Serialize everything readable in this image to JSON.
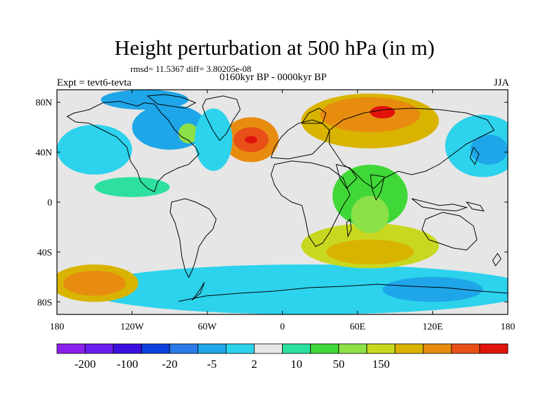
{
  "header": {
    "title": "Height perturbation at 500 hPa (in m)",
    "stats": "rmsd= 11.5367 diff= 3.80205e-08",
    "subtitle": "0160kyr BP - 0000kyr BP",
    "experiment": "Expt = tevt6-tevta",
    "season": "JJA"
  },
  "map": {
    "projection": "cylindrical-equidistant",
    "lon_range": [
      -180,
      180
    ],
    "lat_range": [
      -90,
      90
    ],
    "x_ticks": [
      {
        "value": -180,
        "label": "180"
      },
      {
        "value": -120,
        "label": "120W"
      },
      {
        "value": -60,
        "label": "60W"
      },
      {
        "value": 0,
        "label": "0"
      },
      {
        "value": 60,
        "label": "60E"
      },
      {
        "value": 120,
        "label": "120E"
      },
      {
        "value": 180,
        "label": "180"
      }
    ],
    "y_ticks": [
      {
        "value": 80,
        "label": "80N"
      },
      {
        "value": 40,
        "label": "40N"
      },
      {
        "value": 0,
        "label": "0"
      },
      {
        "value": -40,
        "label": "40S"
      },
      {
        "value": -80,
        "label": "80S"
      }
    ],
    "background_color": "#e6e6e6",
    "features": [
      {
        "name": "north-pacific-low",
        "lon": -150,
        "lat": 42,
        "rx": 30,
        "ry": 20,
        "level": 6
      },
      {
        "name": "north-america-low",
        "lon": -90,
        "lat": 60,
        "rx": 30,
        "ry": 18,
        "level": 5
      },
      {
        "name": "hudson-high",
        "lon": -75,
        "lat": 55,
        "rx": 8,
        "ry": 8,
        "level": 10
      },
      {
        "name": "arctic-low",
        "lon": -110,
        "lat": 82,
        "rx": 35,
        "ry": 8,
        "level": 5
      },
      {
        "name": "north-atlantic-high",
        "lon": -25,
        "lat": 50,
        "rx": 22,
        "ry": 18,
        "level": 13
      },
      {
        "name": "north-atlantic-high-core",
        "lon": -25,
        "lat": 50,
        "rx": 14,
        "ry": 10,
        "level": 14
      },
      {
        "name": "north-atlantic-high-center",
        "lon": -25,
        "lat": 50,
        "rx": 5,
        "ry": 3,
        "level": 15
      },
      {
        "name": "west-pacific-ring-low",
        "lon": -55,
        "lat": 50,
        "rx": 15,
        "ry": 25,
        "level": 6
      },
      {
        "name": "eurasian-high",
        "lon": 70,
        "lat": 65,
        "rx": 55,
        "ry": 22,
        "level": 12
      },
      {
        "name": "eurasian-high-core",
        "lon": 70,
        "lat": 70,
        "rx": 40,
        "ry": 14,
        "level": 13
      },
      {
        "name": "eurasian-high-center",
        "lon": 80,
        "lat": 72,
        "rx": 10,
        "ry": 5,
        "level": 15
      },
      {
        "name": "east-asia-low",
        "lon": 160,
        "lat": 45,
        "rx": 30,
        "ry": 25,
        "level": 6
      },
      {
        "name": "east-asia-low-core",
        "lon": 165,
        "lat": 42,
        "rx": 15,
        "ry": 12,
        "level": 5
      },
      {
        "name": "southern-ocean-band-low",
        "lon": 20,
        "lat": -70,
        "rx": 180,
        "ry": 20,
        "level": 6
      },
      {
        "name": "southern-ocean-band-core",
        "lon": 120,
        "lat": -70,
        "rx": 40,
        "ry": 10,
        "level": 5
      },
      {
        "name": "indian-ocean-high",
        "lon": 70,
        "lat": -35,
        "rx": 55,
        "ry": 18,
        "level": 11
      },
      {
        "name": "indian-ocean-high-core",
        "lon": 70,
        "lat": -40,
        "rx": 35,
        "ry": 10,
        "level": 12
      },
      {
        "name": "south-pacific-high",
        "lon": -150,
        "lat": -65,
        "rx": 35,
        "ry": 15,
        "level": 12
      },
      {
        "name": "south-pacific-high-core",
        "lon": -150,
        "lat": -65,
        "rx": 25,
        "ry": 10,
        "level": 13
      },
      {
        "name": "south-pacific-low",
        "lon": -140,
        "lat": -30,
        "rx": 40,
        "ry": 15,
        "level": 7
      },
      {
        "name": "tropical-indian-low",
        "lon": 70,
        "lat": 5,
        "rx": 30,
        "ry": 25,
        "level": 9
      },
      {
        "name": "tropical-indian-core",
        "lon": 70,
        "lat": -10,
        "rx": 15,
        "ry": 15,
        "level": 10
      },
      {
        "name": "equatorial-pacific-low",
        "lon": -120,
        "lat": 12,
        "rx": 30,
        "ry": 8,
        "level": 8
      }
    ]
  },
  "colorbar": {
    "colors": [
      "#8c20ed",
      "#6a1df0",
      "#3c0fdf",
      "#0e40df",
      "#2a7ae8",
      "#1ea6e8",
      "#2dd2ec",
      "#e6e6e6",
      "#2de0a0",
      "#40d838",
      "#8ce048",
      "#c8d820",
      "#d8b400",
      "#e88c10",
      "#e85018",
      "#e0140c"
    ],
    "labels": [
      {
        "after_box": 2,
        "label": "-200"
      },
      {
        "after_box": 5,
        "label": "-100"
      },
      {
        "after_box": 8,
        "label": "-20"
      },
      {
        "after_box": 11,
        "label": "-5"
      },
      {
        "after_box": 14,
        "label": "2"
      },
      {
        "after_box": 17,
        "label": "10"
      },
      {
        "after_box": 20,
        "label": "50"
      },
      {
        "after_box": 23,
        "label": "150"
      }
    ]
  }
}
